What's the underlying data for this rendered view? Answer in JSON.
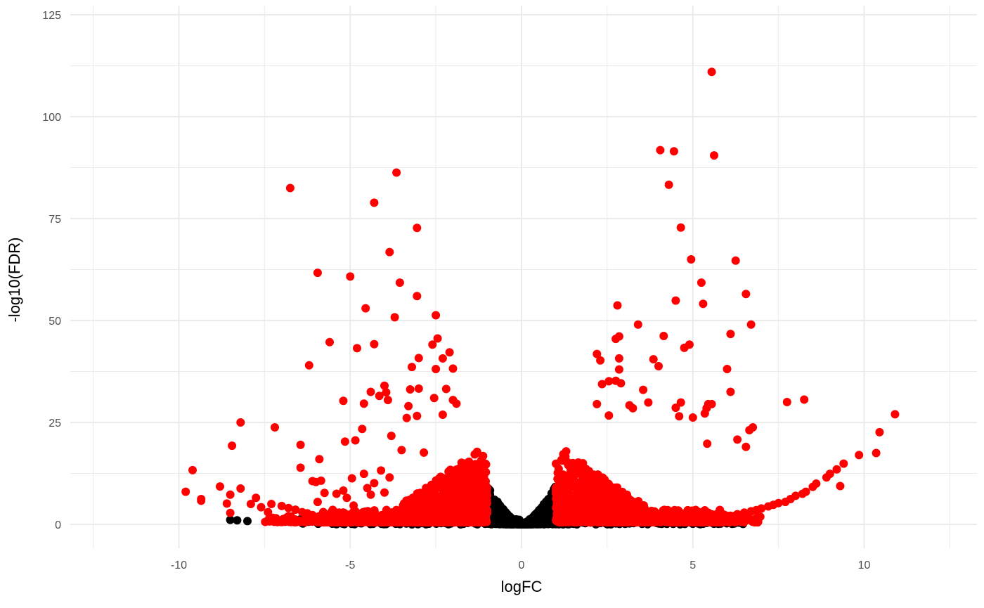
{
  "chart_data": {
    "type": "scatter",
    "title": "",
    "xlabel": "logFC",
    "ylabel": "-log10(FDR)",
    "xlim": [
      -12.5,
      12.5
    ],
    "ylim": [
      -6,
      125
    ],
    "x_ticks": [
      -10,
      -5,
      0,
      5,
      10
    ],
    "x_tick_labels": [
      "-10",
      "-5",
      "0",
      "5",
      "10"
    ],
    "y_ticks": [
      0,
      25,
      50,
      75,
      100,
      125
    ],
    "y_tick_labels": [
      "0",
      "25",
      "50",
      "75",
      "100",
      "125"
    ],
    "grid": true,
    "legend": "none",
    "colors": {
      "significant": "#ff0000",
      "not_significant": "#000000"
    },
    "series": [
      {
        "key": "significant",
        "color": "#ff0000",
        "points": [
          [
            5.55,
            111
          ],
          [
            4.05,
            91.8
          ],
          [
            4.45,
            91.5
          ],
          [
            5.62,
            90.5
          ],
          [
            4.3,
            83.3
          ],
          [
            4.65,
            72.8
          ],
          [
            4.95,
            65
          ],
          [
            6.25,
            64.7
          ],
          [
            5.25,
            59.3
          ],
          [
            6.55,
            56.5
          ],
          [
            4.5,
            54.9
          ],
          [
            5.3,
            54.1
          ],
          [
            2.8,
            53.7
          ],
          [
            3.4,
            49
          ],
          [
            6.7,
            49
          ],
          [
            6.1,
            46.7
          ],
          [
            2.85,
            46.1
          ],
          [
            4.15,
            46.2
          ],
          [
            2.75,
            45.5
          ],
          [
            4.9,
            44.1
          ],
          [
            4.75,
            43.3
          ],
          [
            2.2,
            41.8
          ],
          [
            2.3,
            40.2
          ],
          [
            2.85,
            40.7
          ],
          [
            3.85,
            40.5
          ],
          [
            4.0,
            38.8
          ],
          [
            6.0,
            38.1
          ],
          [
            2.85,
            38
          ],
          [
            2.9,
            34.6
          ],
          [
            2.75,
            35.2
          ],
          [
            2.55,
            35.1
          ],
          [
            2.35,
            34.4
          ],
          [
            3.55,
            33
          ],
          [
            6.1,
            32.5
          ],
          [
            7.75,
            30
          ],
          [
            8.25,
            30.6
          ],
          [
            5.55,
            29.5
          ],
          [
            5.45,
            29.5
          ],
          [
            5.4,
            28.5
          ],
          [
            4.65,
            29.9
          ],
          [
            4.5,
            28.6
          ],
          [
            3.7,
            29.9
          ],
          [
            3.15,
            29.2
          ],
          [
            3.25,
            28.5
          ],
          [
            2.2,
            29.5
          ],
          [
            2.55,
            26.7
          ],
          [
            5.0,
            26.2
          ],
          [
            4.6,
            26.5
          ],
          [
            5.35,
            27.2
          ],
          [
            6.75,
            23.8
          ],
          [
            6.65,
            23.1
          ],
          [
            6.3,
            20.8
          ],
          [
            5.42,
            19.8
          ],
          [
            6.55,
            19
          ],
          [
            10.9,
            27
          ],
          [
            10.45,
            22.6
          ],
          [
            10.35,
            17.5
          ],
          [
            9.85,
            17
          ],
          [
            9.4,
            14.9
          ],
          [
            9.2,
            13.5
          ],
          [
            9.0,
            12.4
          ],
          [
            8.9,
            11.5
          ],
          [
            9.3,
            9.4
          ],
          [
            8.6,
            10
          ],
          [
            8.5,
            9.2
          ],
          [
            8.3,
            8
          ],
          [
            8.2,
            7.5
          ],
          [
            8.0,
            7
          ],
          [
            7.85,
            6.2
          ],
          [
            7.7,
            5.5
          ],
          [
            7.5,
            5.2
          ],
          [
            7.35,
            4.8
          ],
          [
            7.2,
            4.4
          ],
          [
            7.0,
            3.9
          ],
          [
            6.85,
            3.5
          ],
          [
            6.7,
            3.2
          ],
          [
            6.5,
            2.9
          ],
          [
            6.3,
            2.5
          ],
          [
            6.1,
            2.1
          ],
          [
            5.9,
            1.9
          ],
          [
            5.7,
            1.7
          ],
          [
            5.5,
            1.4
          ],
          [
            -6.75,
            82.5
          ],
          [
            -3.65,
            86.3
          ],
          [
            -4.3,
            78.9
          ],
          [
            -3.05,
            72.7
          ],
          [
            -3.85,
            66.8
          ],
          [
            -5.95,
            61.7
          ],
          [
            -5.0,
            60.8
          ],
          [
            -3.55,
            59.3
          ],
          [
            -3.05,
            56
          ],
          [
            -4.55,
            53
          ],
          [
            -3.7,
            50.8
          ],
          [
            -2.5,
            51.3
          ],
          [
            -5.6,
            44.7
          ],
          [
            -4.3,
            44.2
          ],
          [
            -4.8,
            43.2
          ],
          [
            -2.45,
            45.6
          ],
          [
            -2.6,
            44.1
          ],
          [
            -2.1,
            42.2
          ],
          [
            -3.0,
            40.8
          ],
          [
            -2.3,
            40.7
          ],
          [
            -6.2,
            39
          ],
          [
            -3.2,
            38.6
          ],
          [
            -2.5,
            38.1
          ],
          [
            -2.0,
            38.2
          ],
          [
            -4.0,
            34
          ],
          [
            -3.0,
            33.3
          ],
          [
            -3.95,
            32.4
          ],
          [
            -4.4,
            32.5
          ],
          [
            -3.25,
            33.1
          ],
          [
            -2.2,
            33.2
          ],
          [
            -4.15,
            31.5
          ],
          [
            -5.2,
            30.3
          ],
          [
            -3.9,
            30.5
          ],
          [
            -4.6,
            29.6
          ],
          [
            -3.3,
            29
          ],
          [
            -2.55,
            31
          ],
          [
            -2.0,
            30.5
          ],
          [
            -1.9,
            29.6
          ],
          [
            -3.35,
            26.1
          ],
          [
            -3.05,
            26.6
          ],
          [
            -2.3,
            26.9
          ],
          [
            -8.2,
            25
          ],
          [
            -7.2,
            23.8
          ],
          [
            -4.65,
            23.4
          ],
          [
            -3.8,
            21.7
          ],
          [
            -5.15,
            20.3
          ],
          [
            -4.85,
            20.6
          ],
          [
            -6.45,
            19.5
          ],
          [
            -8.45,
            19.3
          ],
          [
            -3.5,
            18.2
          ],
          [
            -2.85,
            17.6
          ],
          [
            -5.9,
            16
          ],
          [
            -4.1,
            13.2
          ],
          [
            -9.6,
            13.3
          ],
          [
            -6.45,
            13.9
          ],
          [
            -9.35,
            5.8
          ],
          [
            -9.35,
            6.2
          ],
          [
            -9.8,
            8
          ],
          [
            -8.8,
            9.3
          ],
          [
            -8.2,
            8.8
          ],
          [
            -8.5,
            7.3
          ],
          [
            -8.6,
            5.1
          ],
          [
            -7.9,
            5
          ],
          [
            -7.75,
            6.5
          ],
          [
            -7.6,
            4.2
          ],
          [
            -8.5,
            2.8
          ],
          [
            -7.4,
            3
          ],
          [
            -6.1,
            10.6
          ],
          [
            -6.0,
            10.4
          ],
          [
            -5.85,
            10.7
          ],
          [
            -5.75,
            7.7
          ],
          [
            -5.95,
            5.5
          ],
          [
            -5.4,
            7.5
          ],
          [
            -5.2,
            8.3
          ],
          [
            -5.1,
            6.5
          ],
          [
            -4.95,
            11.3
          ],
          [
            -4.6,
            12.4
          ],
          [
            -4.3,
            10.1
          ],
          [
            -4.5,
            8.9
          ],
          [
            -4.9,
            4.6
          ],
          [
            -4.4,
            7.3
          ],
          [
            -4.0,
            7.8
          ],
          [
            -3.85,
            11.5
          ],
          [
            -7.3,
            5
          ],
          [
            -7.0,
            4.5
          ],
          [
            -6.8,
            4
          ],
          [
            -6.6,
            3.6
          ],
          [
            -6.4,
            3
          ],
          [
            -6.25,
            2.7
          ],
          [
            -6.1,
            2.3
          ],
          [
            -5.9,
            2
          ],
          [
            -5.7,
            1.8
          ],
          [
            -5.5,
            1.5
          ]
        ],
        "clusters": [
          {
            "x_from": 1.0,
            "x_to": 3.6,
            "y_from": 0.5,
            "y_to": 18,
            "n": 750
          },
          {
            "x_from": 2.5,
            "x_to": 5.8,
            "y_from": 0.5,
            "y_to": 12,
            "n": 320
          },
          {
            "x_from": 5.0,
            "x_to": 7.0,
            "y_from": 0.5,
            "y_to": 8,
            "n": 90
          },
          {
            "x_from": -3.5,
            "x_to": -1.0,
            "y_from": 0.5,
            "y_to": 18,
            "n": 750
          },
          {
            "x_from": -5.8,
            "x_to": -2.5,
            "y_from": 0.5,
            "y_to": 12,
            "n": 320
          },
          {
            "x_from": -7.5,
            "x_to": -5.0,
            "y_from": 0.5,
            "y_to": 6,
            "n": 90
          }
        ]
      },
      {
        "key": "not_significant",
        "color": "#000000",
        "points": [
          [
            -6.5,
            1
          ],
          [
            -6.3,
            1.1
          ],
          [
            -6.1,
            0.9
          ],
          [
            -5.8,
            1
          ],
          [
            -5.6,
            1.2
          ],
          [
            -5.3,
            1
          ],
          [
            -5.0,
            0.9
          ],
          [
            -4.7,
            1.1
          ],
          [
            -4.5,
            1
          ],
          [
            -4.2,
            0.8
          ],
          [
            -4.0,
            1
          ],
          [
            -3.7,
            1.1
          ],
          [
            -3.5,
            0.9
          ],
          [
            -8.3,
            1
          ],
          [
            -3.2,
            1
          ],
          [
            -2.9,
            1.2
          ],
          [
            -8.5,
            1.1
          ],
          [
            -4.0,
            0.9
          ],
          [
            -8.0,
            0.8
          ],
          [
            -5.0,
            1.2
          ],
          [
            6.5,
            1
          ],
          [
            6.3,
            1.1
          ],
          [
            6.0,
            0.9
          ],
          [
            5.8,
            1
          ],
          [
            5.5,
            1.2
          ],
          [
            5.2,
            1
          ],
          [
            4.9,
            0.9
          ],
          [
            4.6,
            1.1
          ],
          [
            4.4,
            1
          ],
          [
            4.1,
            0.8
          ],
          [
            3.9,
            1.4
          ],
          [
            3.6,
            1.1
          ],
          [
            3.3,
            0.9
          ],
          [
            3.0,
            1
          ]
        ],
        "vshape": {
          "x_max": 1.0,
          "y_scale": 9.5,
          "n": 900
        }
      }
    ]
  }
}
